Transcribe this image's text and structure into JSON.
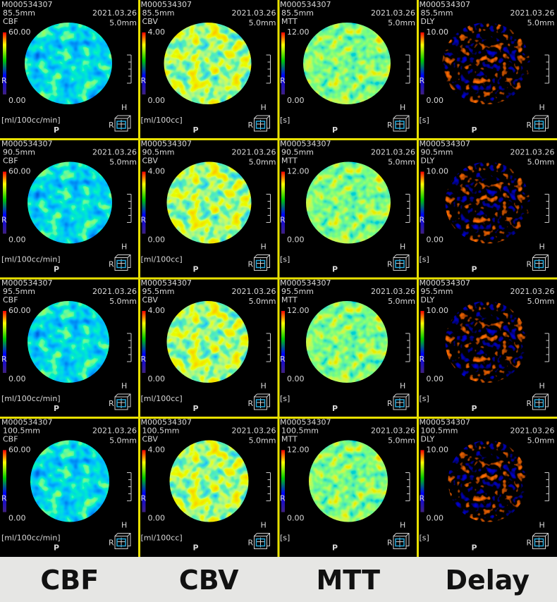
{
  "panel": {
    "id": "M000534307",
    "date": "2021.03.26",
    "thickness": "5.0mm",
    "left": "R",
    "posterior": "P",
    "head": "H",
    "side": "R"
  },
  "rows": [
    {
      "slice": "85.5mm"
    },
    {
      "slice": "90.5mm"
    },
    {
      "slice": "95.5mm"
    },
    {
      "slice": "100.5mm"
    }
  ],
  "columns": [
    {
      "map": "CBF",
      "max": "60.00",
      "min": "0.00",
      "unit": "[ml/100cc/min]"
    },
    {
      "map": "CBV",
      "max": "4.00",
      "min": "0.00",
      "unit": "[ml/100cc]"
    },
    {
      "map": "MTT",
      "max": "12.00",
      "min": "0.00",
      "unit": "[s]"
    },
    {
      "map": "DLY",
      "max": "10.00",
      "min": "0.00",
      "unit": "[s]"
    }
  ],
  "labels": [
    "CBF",
    "CBV",
    "MTT",
    "Delay"
  ]
}
